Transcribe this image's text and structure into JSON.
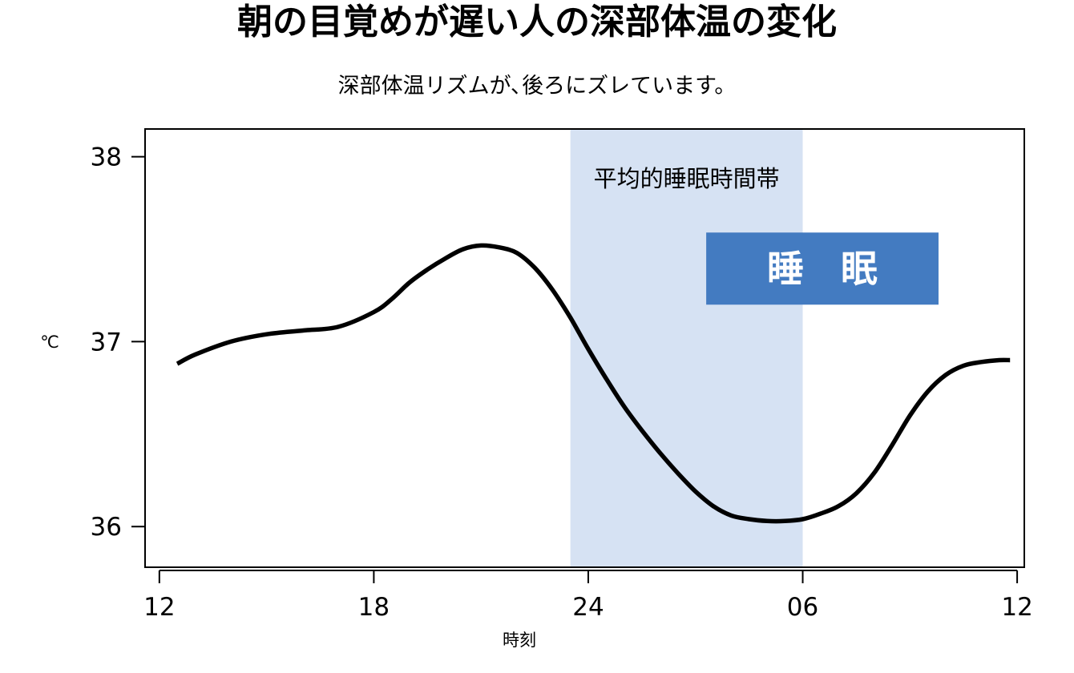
{
  "colors": {
    "band": "#d6e2f3",
    "badge": "#437bc1",
    "line": "#000000",
    "frame": "#000000"
  },
  "chart_data": {
    "type": "line",
    "title": "朝の目覚めが遅い人の深部体温の変化",
    "subtitle": "深部体温リズムが､後ろにズレています。",
    "xlabel": "時刻",
    "ylabel": "℃",
    "x_unit": "hours since 12:00",
    "xlim": [
      -0.4,
      24.2
    ],
    "ylim": [
      35.78,
      38.15
    ],
    "x_ticks": [
      {
        "value": 0,
        "label": "12"
      },
      {
        "value": 6,
        "label": "18"
      },
      {
        "value": 12,
        "label": "24"
      },
      {
        "value": 18,
        "label": "06"
      },
      {
        "value": 24,
        "label": "12"
      }
    ],
    "y_ticks": [
      {
        "value": 36,
        "label": "36"
      },
      {
        "value": 37,
        "label": "37"
      },
      {
        "value": 38,
        "label": "38"
      }
    ],
    "grid": false,
    "shaded_region": {
      "x": [
        11.5,
        18.0
      ],
      "label": "平均的睡眠時間帯"
    },
    "annotations": [
      {
        "text": "睡　眠",
        "x": [
          15.3,
          21.8
        ],
        "y": [
          37.2,
          37.59
        ]
      }
    ],
    "series": [
      {
        "x": [
          0.5,
          1.0,
          2.0,
          3.0,
          4.0,
          5.0,
          6.0,
          6.5,
          7.0,
          7.5,
          8.0,
          8.5,
          9.0,
          9.5,
          10.0,
          10.5,
          11.0,
          11.5,
          12.0,
          12.5,
          13.0,
          13.5,
          14.0,
          14.5,
          15.0,
          15.5,
          16.0,
          16.5,
          17.0,
          17.5,
          18.0,
          18.5,
          19.0,
          19.5,
          20.0,
          20.5,
          21.0,
          21.5,
          22.0,
          22.5,
          23.0,
          23.5,
          23.8
        ],
        "y": [
          36.88,
          36.93,
          37.0,
          37.04,
          37.06,
          37.08,
          37.16,
          37.23,
          37.32,
          37.39,
          37.45,
          37.5,
          37.52,
          37.51,
          37.48,
          37.4,
          37.28,
          37.13,
          36.96,
          36.8,
          36.65,
          36.52,
          36.4,
          36.29,
          36.19,
          36.11,
          36.06,
          36.04,
          36.03,
          36.03,
          36.04,
          36.07,
          36.11,
          36.18,
          36.29,
          36.44,
          36.6,
          36.73,
          36.82,
          36.87,
          36.89,
          36.9,
          36.9
        ]
      }
    ]
  }
}
